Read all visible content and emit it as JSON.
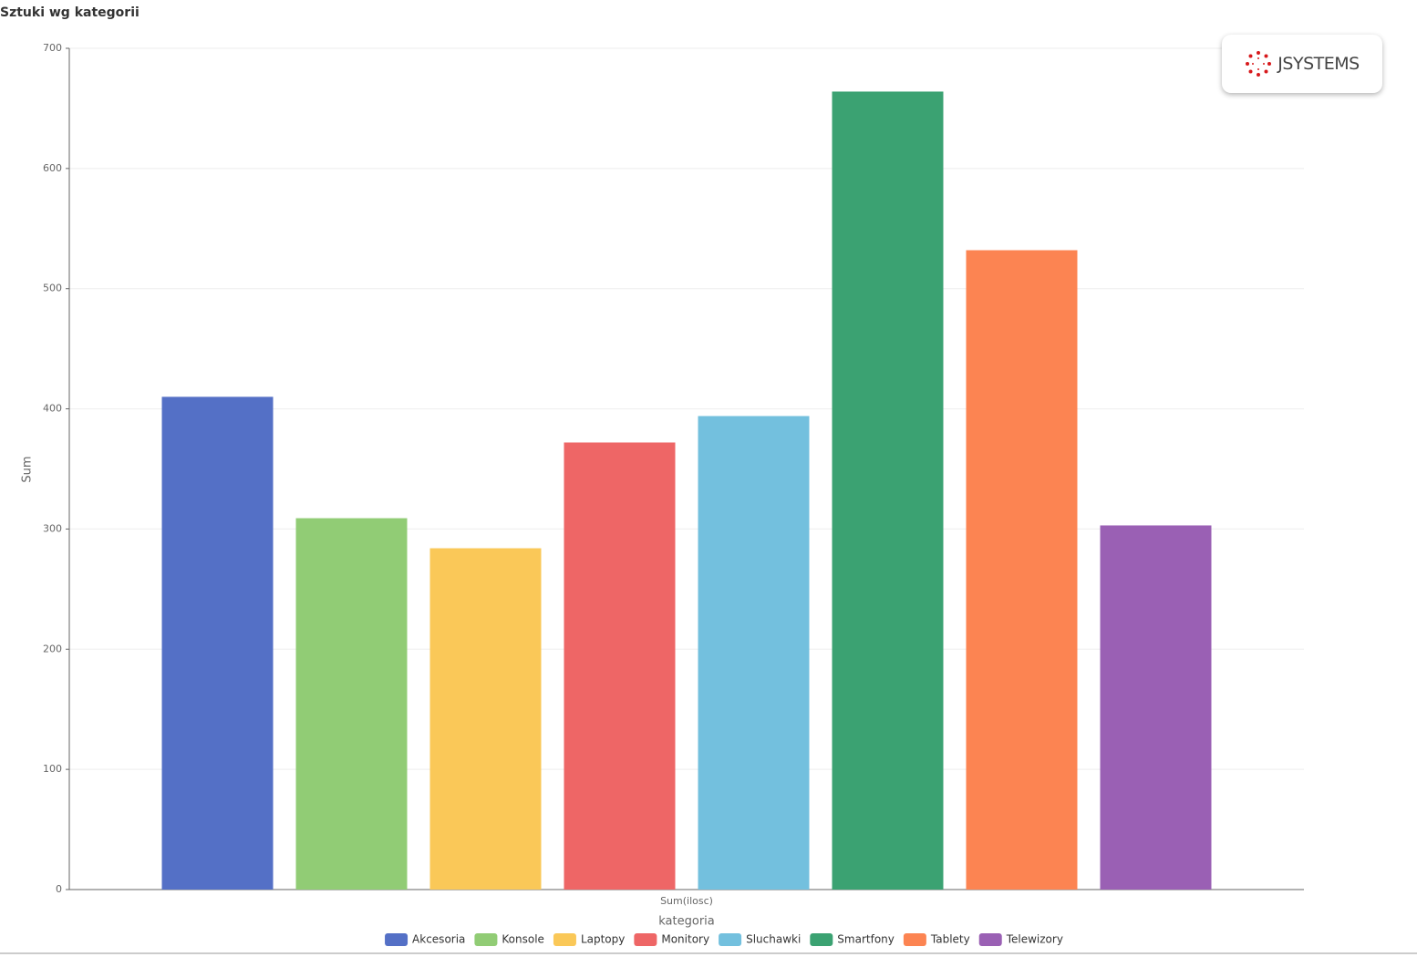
{
  "logo": "JSYSTEMS",
  "chart_data": {
    "type": "bar",
    "title": "Sztuki wg kategorii",
    "y_label": "Sum",
    "x_label": "kategoria",
    "categories": [
      "Sum(ilosc)"
    ],
    "series": [
      {
        "name": "Akcesoria",
        "color": "#5470c6",
        "values": [
          410
        ]
      },
      {
        "name": "Konsole",
        "color": "#91cc75",
        "values": [
          309
        ]
      },
      {
        "name": "Laptopy",
        "color": "#fac858",
        "values": [
          284
        ]
      },
      {
        "name": "Monitory",
        "color": "#ee6666",
        "values": [
          372
        ]
      },
      {
        "name": "Sluchawki",
        "color": "#73c0de",
        "values": [
          394
        ]
      },
      {
        "name": "Smartfony",
        "color": "#3ba272",
        "values": [
          664
        ]
      },
      {
        "name": "Tablety",
        "color": "#fc8452",
        "values": [
          532
        ]
      },
      {
        "name": "Telewizory",
        "color": "#9a60b4",
        "values": [
          303
        ]
      }
    ],
    "ylim": [
      0,
      700
    ],
    "yticks": [
      0,
      100,
      200,
      300,
      400,
      500,
      600,
      700
    ],
    "grid": true,
    "legend": "bottom"
  }
}
